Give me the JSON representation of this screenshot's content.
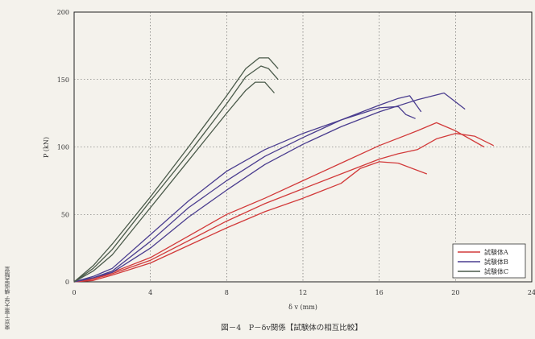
{
  "side_text": "東京工業大学 構造実験室",
  "caption": "図－4　P－δv関係【試験体の相互比較】",
  "chart_data": {
    "type": "line",
    "xlabel": "δ v (mm)",
    "ylabel": "P (kN)",
    "xlim": [
      0,
      24
    ],
    "ylim": [
      0,
      200
    ],
    "x_ticks": [
      "0",
      "4",
      "8",
      "12",
      "16",
      "20",
      "24"
    ],
    "y_ticks": [
      "0",
      "50",
      "100",
      "150",
      "200"
    ],
    "grid": true,
    "legend_position": "bottom-right",
    "series": [
      {
        "name": "試験体A",
        "color": "#d23a3a",
        "points": [
          [
            0,
            0
          ],
          [
            1,
            2
          ],
          [
            2,
            6
          ],
          [
            4,
            16
          ],
          [
            8,
            45
          ],
          [
            10,
            58
          ],
          [
            12,
            69
          ],
          [
            14,
            80
          ],
          [
            16,
            91
          ],
          [
            17,
            95
          ],
          [
            18,
            98
          ],
          [
            19,
            106
          ],
          [
            20,
            110
          ],
          [
            21,
            108
          ],
          [
            22,
            101
          ]
        ]
      },
      {
        "name": "",
        "color": "#d23a3a",
        "points": [
          [
            0,
            0
          ],
          [
            1,
            1
          ],
          [
            2,
            5
          ],
          [
            4,
            14
          ],
          [
            8,
            40
          ],
          [
            10,
            52
          ],
          [
            12,
            62
          ],
          [
            14,
            73
          ],
          [
            15,
            84
          ],
          [
            16,
            89
          ],
          [
            17,
            88
          ],
          [
            18.5,
            80
          ]
        ]
      },
      {
        "name": "",
        "color": "#d23a3a",
        "points": [
          [
            0,
            0
          ],
          [
            1,
            2
          ],
          [
            2,
            7
          ],
          [
            4,
            18
          ],
          [
            8,
            50
          ],
          [
            10,
            62
          ],
          [
            12,
            75
          ],
          [
            14,
            88
          ],
          [
            16,
            101
          ],
          [
            18,
            112
          ],
          [
            19,
            118
          ],
          [
            20,
            112
          ],
          [
            21.5,
            100
          ]
        ]
      },
      {
        "name": "試験体B",
        "color": "#4a3d8f",
        "points": [
          [
            0,
            0
          ],
          [
            1,
            4
          ],
          [
            2,
            10
          ],
          [
            4,
            35
          ],
          [
            6,
            60
          ],
          [
            8,
            82
          ],
          [
            10,
            98
          ],
          [
            12,
            110
          ],
          [
            14,
            120
          ],
          [
            16,
            129
          ],
          [
            17,
            130
          ],
          [
            17.4,
            124
          ],
          [
            17.9,
            121
          ]
        ]
      },
      {
        "name": "",
        "color": "#4a3d8f",
        "points": [
          [
            0,
            0
          ],
          [
            1,
            3
          ],
          [
            2,
            8
          ],
          [
            4,
            30
          ],
          [
            6,
            55
          ],
          [
            8,
            75
          ],
          [
            10,
            93
          ],
          [
            12,
            107
          ],
          [
            14,
            120
          ],
          [
            16,
            131
          ],
          [
            17,
            136
          ],
          [
            17.6,
            138
          ],
          [
            18.2,
            126
          ]
        ]
      },
      {
        "name": "",
        "color": "#4a3d8f",
        "points": [
          [
            0,
            0
          ],
          [
            1,
            3
          ],
          [
            2,
            7
          ],
          [
            4,
            25
          ],
          [
            6,
            48
          ],
          [
            8,
            68
          ],
          [
            10,
            87
          ],
          [
            12,
            102
          ],
          [
            14,
            115
          ],
          [
            16,
            126
          ],
          [
            18,
            135
          ],
          [
            19.4,
            140
          ],
          [
            20.5,
            128
          ]
        ]
      },
      {
        "name": "試験体C",
        "color": "#4a5a4a",
        "points": [
          [
            0,
            0
          ],
          [
            1,
            8
          ],
          [
            2,
            20
          ],
          [
            4,
            55
          ],
          [
            6,
            90
          ],
          [
            8,
            125
          ],
          [
            9,
            142
          ],
          [
            9.5,
            148
          ],
          [
            10,
            148
          ],
          [
            10.5,
            140
          ]
        ]
      },
      {
        "name": "",
        "color": "#4a5a4a",
        "points": [
          [
            0,
            0
          ],
          [
            1,
            10
          ],
          [
            2,
            24
          ],
          [
            4,
            60
          ],
          [
            6,
            95
          ],
          [
            8,
            132
          ],
          [
            9,
            152
          ],
          [
            9.8,
            160
          ],
          [
            10.2,
            158
          ],
          [
            10.7,
            150
          ]
        ]
      },
      {
        "name": "",
        "color": "#4a5a4a",
        "points": [
          [
            0,
            0
          ],
          [
            1,
            12
          ],
          [
            2,
            28
          ],
          [
            4,
            63
          ],
          [
            6,
            100
          ],
          [
            8,
            138
          ],
          [
            9,
            158
          ],
          [
            9.7,
            166
          ],
          [
            10.2,
            166
          ],
          [
            10.7,
            158
          ]
        ]
      }
    ]
  }
}
